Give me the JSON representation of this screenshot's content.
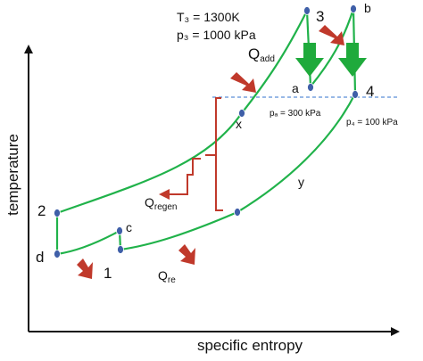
{
  "axes": {
    "y_label": "temperature",
    "x_label": "specific entropy"
  },
  "annotations": {
    "t3": "T₃ = 1300K",
    "p3": "p₃ = 1000 kPa",
    "pa": "pₐ = 300 kPa",
    "p4": "p₄ = 100 kPa"
  },
  "heat_labels": {
    "q_add_main": "Q",
    "q_add_sub": "add",
    "q_regen_main": "Q",
    "q_regen_sub": "regen",
    "q_re_main": "Q",
    "q_re_sub": "re"
  },
  "points": {
    "p2": "2",
    "pd": "d",
    "p1": "1",
    "pc": "c",
    "px": "x",
    "py": "y",
    "pa": "a",
    "p3": "3",
    "pb": "b",
    "p4": "4"
  },
  "colors": {
    "curve": "#20b24a",
    "state_point": "#3f5fa8",
    "arrow_red": "#c0392b",
    "arrow_green": "#1faa3c",
    "bracket": "#c0392b",
    "dashed": "#5b8fd6",
    "axis": "#111111"
  }
}
